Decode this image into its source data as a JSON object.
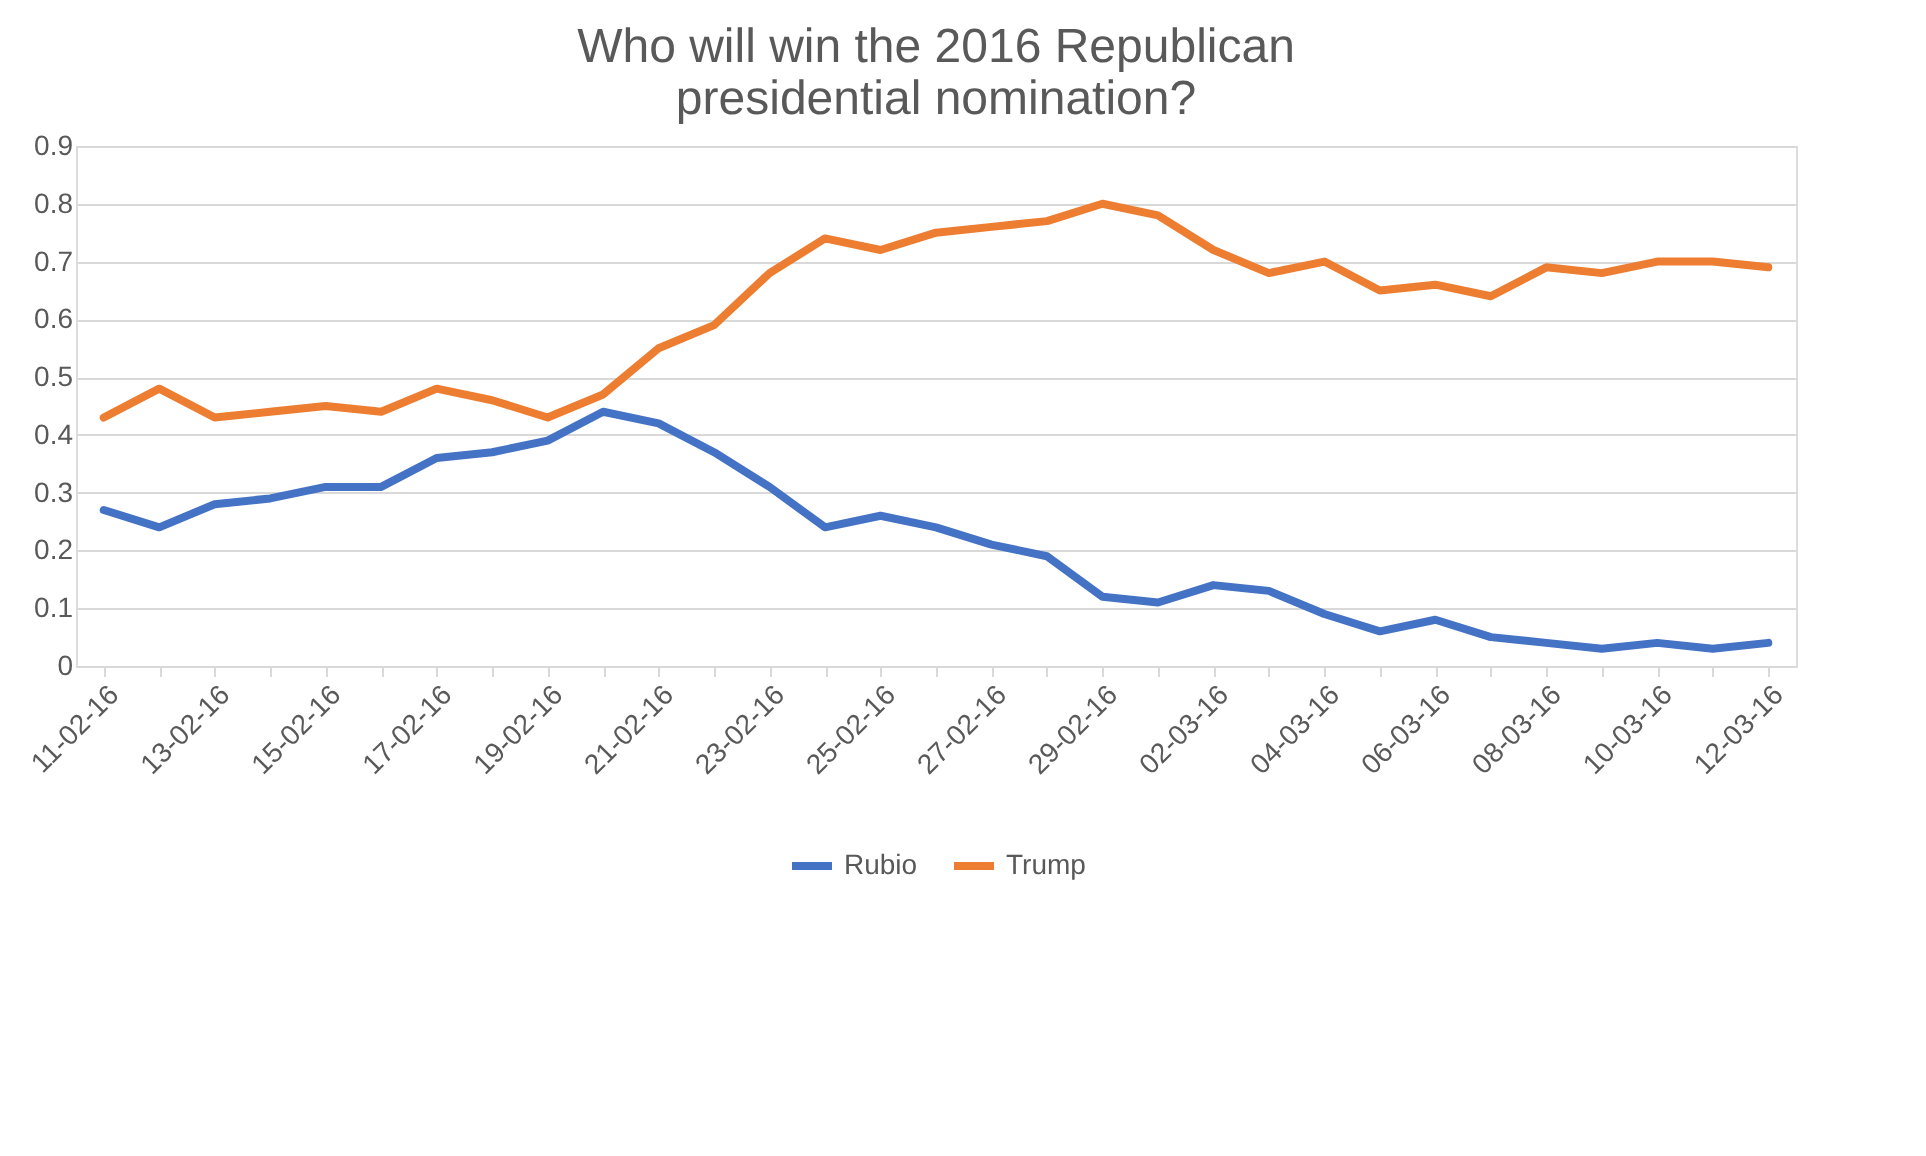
{
  "chart_data": {
    "type": "line",
    "title": "Who will win the 2016 Republican presidential nomination?",
    "categories": [
      "11-02-16",
      null,
      "13-02-16",
      null,
      "15-02-16",
      null,
      "17-02-16",
      null,
      "19-02-16",
      null,
      "21-02-16",
      null,
      "23-02-16",
      null,
      "25-02-16",
      null,
      "27-02-16",
      null,
      "29-02-16",
      null,
      "02-03-16",
      null,
      "04-03-16",
      null,
      "06-03-16",
      null,
      "08-03-16",
      null,
      "10-03-16",
      null,
      "12-03-16"
    ],
    "series": [
      {
        "name": "Rubio",
        "color": "#4472c4",
        "values": [
          0.27,
          0.24,
          0.28,
          0.29,
          0.31,
          0.31,
          0.36,
          0.37,
          0.39,
          0.44,
          0.42,
          0.37,
          0.31,
          0.24,
          0.26,
          0.24,
          0.21,
          0.19,
          0.12,
          0.11,
          0.14,
          0.13,
          0.09,
          0.06,
          0.08,
          0.05,
          0.04,
          0.03,
          0.04,
          0.03,
          0.04
        ]
      },
      {
        "name": "Trump",
        "color": "#ed7d31",
        "values": [
          0.43,
          0.48,
          0.43,
          0.44,
          0.45,
          0.44,
          0.48,
          0.46,
          0.43,
          0.47,
          0.55,
          0.59,
          0.68,
          0.74,
          0.72,
          0.75,
          0.76,
          0.77,
          0.8,
          0.78,
          0.72,
          0.68,
          0.7,
          0.65,
          0.66,
          0.64,
          0.69,
          0.68,
          0.7,
          0.7,
          0.69
        ]
      }
    ],
    "ylim": [
      0,
      0.9
    ],
    "yticks": [
      0,
      0.1,
      0.2,
      0.3,
      0.4,
      0.5,
      0.6,
      0.7,
      0.8,
      0.9
    ],
    "grid": "y",
    "legend": "bottom",
    "marker": "none",
    "line_style": "solid"
  }
}
